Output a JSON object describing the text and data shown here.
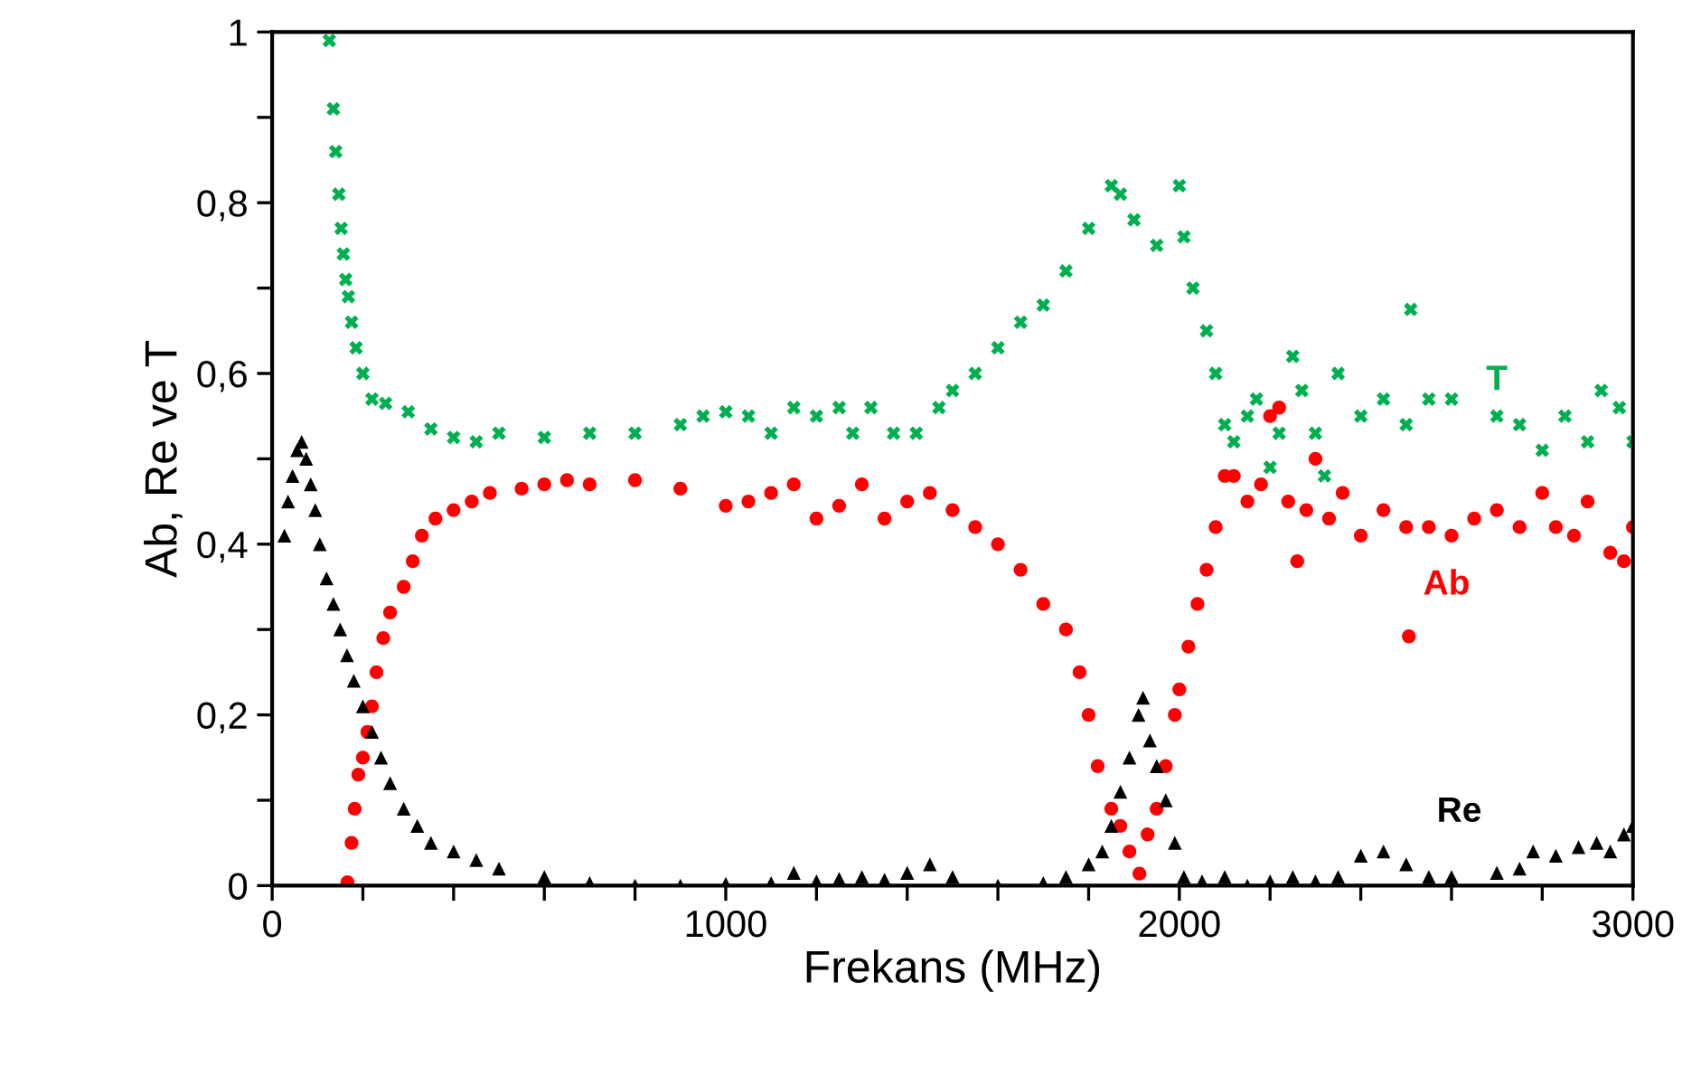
{
  "chart_data": {
    "type": "scatter",
    "xlabel": "Frekans (MHz)",
    "ylabel": "Ab, Re ve T",
    "xlim": [
      0,
      3000
    ],
    "ylim": [
      0,
      1
    ],
    "xticks": [
      0,
      {
        "value": 200,
        "label": null
      },
      {
        "value": 400,
        "label": null
      },
      {
        "value": 600,
        "label": null
      },
      {
        "value": 800,
        "label": null
      },
      1000,
      {
        "value": 1200,
        "label": null
      },
      {
        "value": 1400,
        "label": null
      },
      {
        "value": 1600,
        "label": null
      },
      {
        "value": 1800,
        "label": null
      },
      2000,
      {
        "value": 2200,
        "label": null
      },
      {
        "value": 2400,
        "label": null
      },
      {
        "value": 2600,
        "label": null
      },
      {
        "value": 2800,
        "label": null
      },
      3000
    ],
    "yticks": [
      0,
      {
        "value": 0.1,
        "label": null
      },
      {
        "value": 0.2,
        "label": "0,2"
      },
      {
        "value": 0.3,
        "label": null
      },
      {
        "value": 0.4,
        "label": "0,4"
      },
      {
        "value": 0.5,
        "label": null
      },
      {
        "value": 0.6,
        "label": "0,6"
      },
      {
        "value": 0.7,
        "label": null
      },
      {
        "value": 0.8,
        "label": "0,8"
      },
      {
        "value": 0.9,
        "label": null
      },
      1
    ],
    "grid": false,
    "legend": false,
    "series": [
      {
        "name": "T",
        "color": "#00b050",
        "marker": "cross",
        "x": [
          126,
          135,
          140,
          147,
          152,
          157,
          162,
          168,
          175,
          185,
          200,
          220,
          250,
          300,
          350,
          400,
          450,
          500,
          600,
          700,
          800,
          900,
          950,
          1000,
          1050,
          1100,
          1150,
          1200,
          1250,
          1280,
          1320,
          1370,
          1420,
          1470,
          1500,
          1550,
          1600,
          1650,
          1700,
          1750,
          1800,
          1850,
          1870,
          1900,
          1950,
          2000,
          2010,
          2030,
          2060,
          2080,
          2100,
          2120,
          2150,
          2170,
          2200,
          2220,
          2250,
          2270,
          2300,
          2320,
          2350,
          2400,
          2450,
          2500,
          2510,
          2550,
          2600,
          2700,
          2750,
          2800,
          2850,
          2900,
          2930,
          2970,
          3000
        ],
        "values": [
          0.99,
          0.91,
          0.86,
          0.81,
          0.77,
          0.74,
          0.71,
          0.69,
          0.66,
          0.63,
          0.6,
          0.57,
          0.565,
          0.555,
          0.535,
          0.525,
          0.52,
          0.53,
          0.525,
          0.53,
          0.53,
          0.54,
          0.55,
          0.555,
          0.55,
          0.53,
          0.56,
          0.55,
          0.56,
          0.53,
          0.56,
          0.53,
          0.53,
          0.56,
          0.58,
          0.6,
          0.63,
          0.66,
          0.68,
          0.72,
          0.77,
          0.82,
          0.81,
          0.78,
          0.75,
          0.82,
          0.76,
          0.7,
          0.65,
          0.6,
          0.54,
          0.52,
          0.55,
          0.57,
          0.49,
          0.53,
          0.62,
          0.58,
          0.53,
          0.48,
          0.6,
          0.55,
          0.57,
          0.54,
          0.675,
          0.57,
          0.57,
          0.55,
          0.54,
          0.51,
          0.55,
          0.52,
          0.58,
          0.56,
          0.52
        ]
      },
      {
        "name": "Ab",
        "color": "#ff0000",
        "marker": "circle",
        "x": [
          166,
          175,
          182,
          190,
          200,
          210,
          220,
          230,
          245,
          260,
          290,
          310,
          330,
          360,
          400,
          440,
          480,
          550,
          600,
          650,
          700,
          800,
          900,
          1000,
          1050,
          1100,
          1150,
          1200,
          1250,
          1300,
          1350,
          1400,
          1450,
          1500,
          1550,
          1600,
          1650,
          1700,
          1750,
          1780,
          1800,
          1820,
          1850,
          1870,
          1890,
          1912,
          1930,
          1950,
          1970,
          1990,
          2000,
          2020,
          2040,
          2060,
          2080,
          2100,
          2120,
          2150,
          2180,
          2200,
          2220,
          2240,
          2260,
          2280,
          2300,
          2330,
          2360,
          2400,
          2450,
          2500,
          2506,
          2550,
          2600,
          2650,
          2700,
          2750,
          2800,
          2830,
          2870,
          2900,
          2950,
          2980,
          3000
        ],
        "values": [
          0.004,
          0.05,
          0.09,
          0.13,
          0.15,
          0.18,
          0.21,
          0.25,
          0.29,
          0.32,
          0.35,
          0.38,
          0.41,
          0.43,
          0.44,
          0.45,
          0.46,
          0.465,
          0.47,
          0.475,
          0.47,
          0.475,
          0.465,
          0.445,
          0.45,
          0.46,
          0.47,
          0.43,
          0.445,
          0.47,
          0.43,
          0.45,
          0.46,
          0.44,
          0.42,
          0.4,
          0.37,
          0.33,
          0.3,
          0.25,
          0.2,
          0.14,
          0.09,
          0.07,
          0.04,
          0.014,
          0.06,
          0.09,
          0.14,
          0.2,
          0.23,
          0.28,
          0.33,
          0.37,
          0.42,
          0.48,
          0.48,
          0.45,
          0.47,
          0.55,
          0.56,
          0.45,
          0.38,
          0.44,
          0.5,
          0.43,
          0.46,
          0.41,
          0.44,
          0.42,
          0.292,
          0.42,
          0.41,
          0.43,
          0.44,
          0.42,
          0.46,
          0.42,
          0.41,
          0.45,
          0.39,
          0.38,
          0.42
        ]
      },
      {
        "name": "Re",
        "color": "#000000",
        "marker": "triangle",
        "x": [
          27,
          35,
          45,
          55,
          65,
          75,
          85,
          95,
          105,
          120,
          135,
          150,
          165,
          180,
          200,
          220,
          240,
          260,
          290,
          320,
          350,
          400,
          450,
          500,
          600,
          700,
          800,
          900,
          1000,
          1100,
          1150,
          1200,
          1250,
          1300,
          1350,
          1400,
          1450,
          1500,
          1600,
          1700,
          1750,
          1800,
          1830,
          1850,
          1870,
          1890,
          1910,
          1920,
          1935,
          1950,
          1970,
          1990,
          2010,
          2050,
          2100,
          2150,
          2200,
          2250,
          2300,
          2350,
          2400,
          2450,
          2500,
          2550,
          2600,
          2700,
          2750,
          2780,
          2830,
          2880,
          2920,
          2950,
          2980,
          3000
        ],
        "values": [
          0.41,
          0.45,
          0.48,
          0.51,
          0.52,
          0.5,
          0.47,
          0.44,
          0.4,
          0.36,
          0.33,
          0.3,
          0.27,
          0.24,
          0.21,
          0.18,
          0.15,
          0.12,
          0.09,
          0.07,
          0.05,
          0.04,
          0.03,
          0.02,
          0.01,
          0.003,
          0.0,
          0.0,
          0.002,
          0.003,
          0.015,
          0.005,
          0.008,
          0.01,
          0.007,
          0.015,
          0.025,
          0.01,
          0.0,
          0.003,
          0.01,
          0.025,
          0.04,
          0.07,
          0.11,
          0.15,
          0.2,
          0.22,
          0.17,
          0.14,
          0.1,
          0.05,
          0.01,
          0.005,
          0.01,
          0.0,
          0.005,
          0.01,
          0.005,
          0.01,
          0.035,
          0.04,
          0.025,
          0.01,
          0.01,
          0.015,
          0.02,
          0.04,
          0.035,
          0.045,
          0.05,
          0.04,
          0.06,
          0.07
        ]
      }
    ]
  }
}
